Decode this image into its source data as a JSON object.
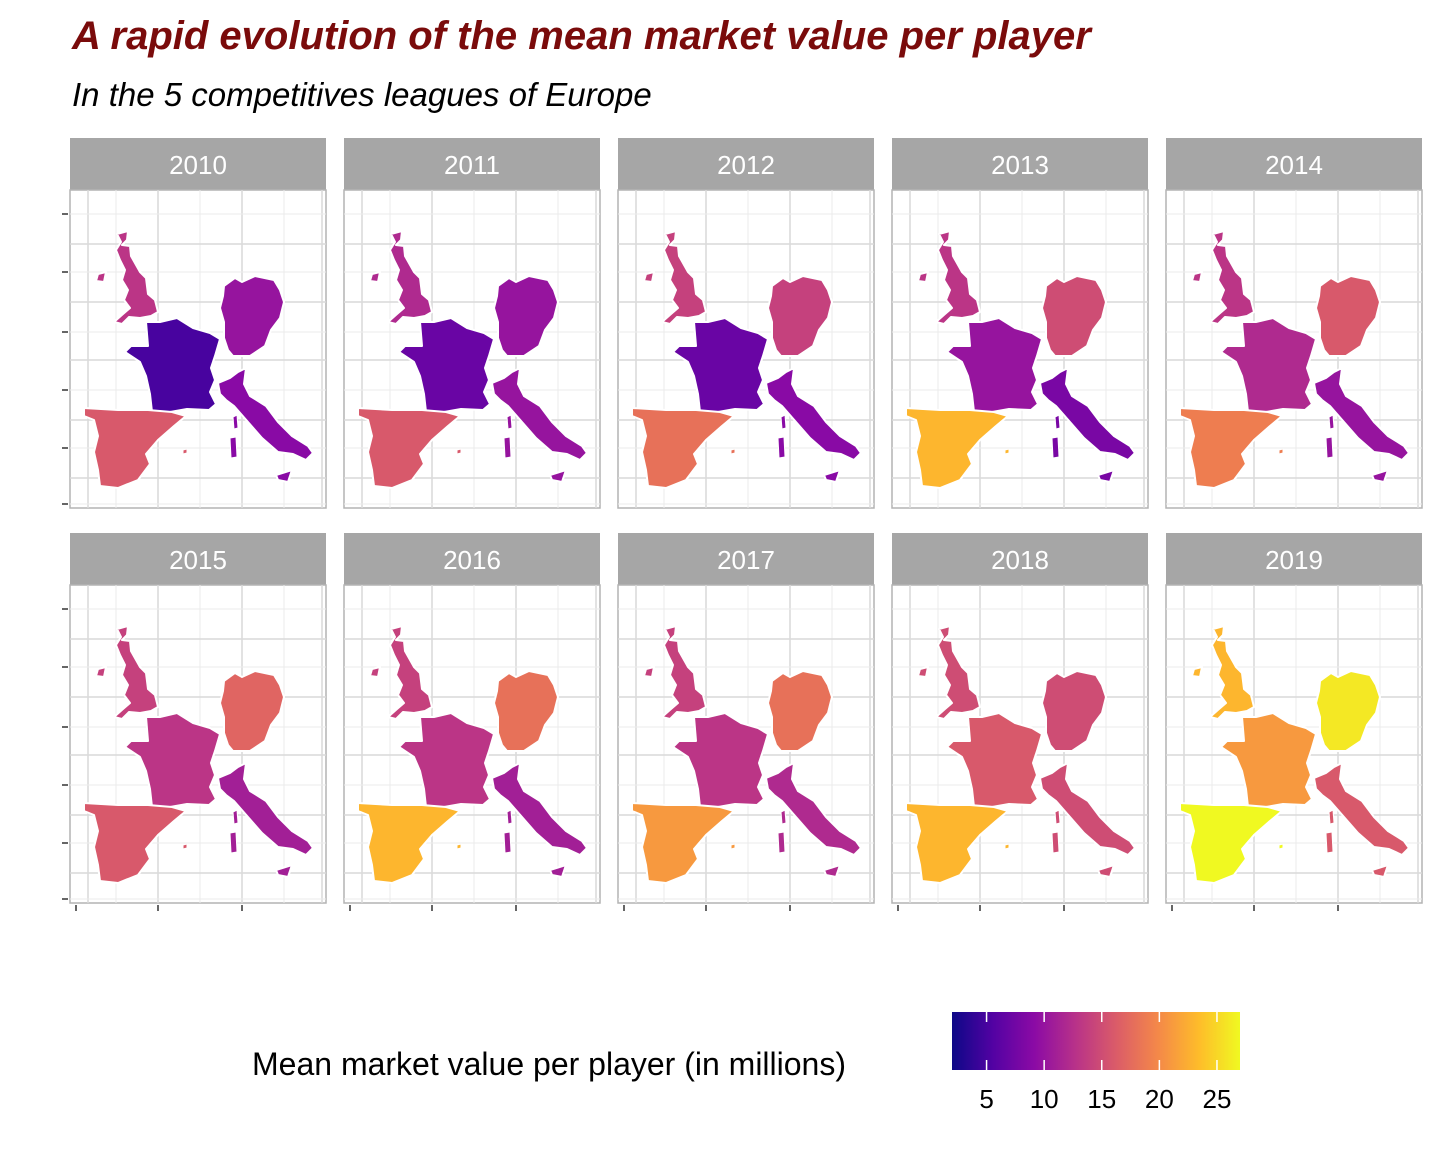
{
  "chart": {
    "title": "A rapid evolution of the mean market value per player",
    "subtitle": "In the 5 competitives leagues of Europe"
  },
  "chart_data": {
    "type": "choropleth",
    "regions": [
      "England",
      "France",
      "Germany",
      "Italy",
      "Spain"
    ],
    "series": [
      {
        "name": "2010",
        "values": {
          "England": 13,
          "France": 5,
          "Germany": 10,
          "Italy": 9,
          "Spain": 16
        }
      },
      {
        "name": "2011",
        "values": {
          "England": 12,
          "France": 7,
          "Germany": 10,
          "Italy": 10,
          "Spain": 16
        }
      },
      {
        "name": "2012",
        "values": {
          "England": 14,
          "France": 7,
          "Germany": 14,
          "Italy": 9,
          "Spain": 18
        }
      },
      {
        "name": "2013",
        "values": {
          "England": 13,
          "France": 10,
          "Germany": 15,
          "Italy": 8,
          "Spain": 23
        }
      },
      {
        "name": "2014",
        "values": {
          "England": 13,
          "France": 12,
          "Germany": 16,
          "Italy": 10,
          "Spain": 19
        }
      },
      {
        "name": "2015",
        "values": {
          "England": 14,
          "France": 13,
          "Germany": 17,
          "Italy": 11,
          "Spain": 16
        }
      },
      {
        "name": "2016",
        "values": {
          "England": 14,
          "France": 13,
          "Germany": 18,
          "Italy": 11,
          "Spain": 23
        }
      },
      {
        "name": "2017",
        "values": {
          "England": 14,
          "France": 13,
          "Germany": 18,
          "Italy": 12,
          "Spain": 21
        }
      },
      {
        "name": "2018",
        "values": {
          "England": 15,
          "France": 16,
          "Germany": 15,
          "Italy": 15,
          "Spain": 23
        }
      },
      {
        "name": "2019",
        "values": {
          "England": 23,
          "France": 21,
          "Germany": 26,
          "Italy": 16,
          "Spain": 27
        }
      }
    ],
    "legend": {
      "title": "Mean market value per player (in millions)",
      "placement": "bottom",
      "range": [
        2,
        27
      ],
      "ticks": [
        5,
        10,
        15,
        20,
        25
      ],
      "palette": [
        "#0d0887",
        "#5302a3",
        "#8b0aa5",
        "#b83289",
        "#db5c68",
        "#f48849",
        "#febc2a",
        "#f0f921"
      ]
    },
    "grid": true,
    "facet_strip_color": "#a6a6a6"
  }
}
